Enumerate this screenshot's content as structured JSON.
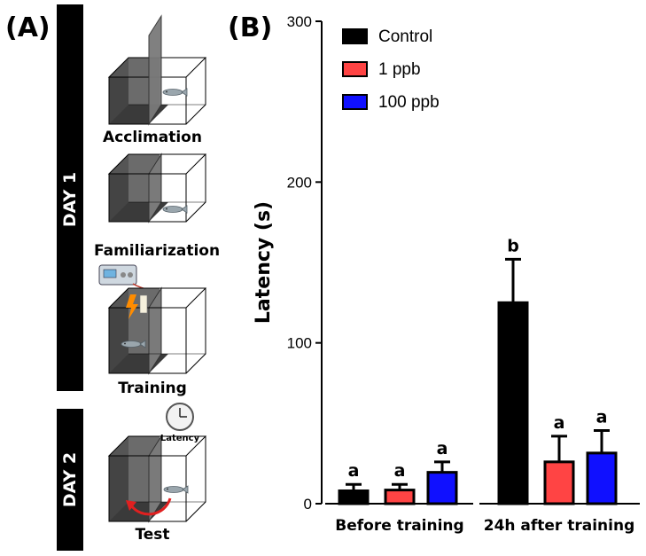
{
  "panel_a": {
    "label": "(A)",
    "day1_label": "DAY 1",
    "day2_label": "DAY 2",
    "steps": [
      "Acclimation",
      "Familiarization",
      "Training",
      "Test"
    ],
    "clock_label": "Latency"
  },
  "panel_b": {
    "label": "(B)"
  },
  "chart_data": {
    "type": "bar",
    "ylabel": "Latency (s)",
    "ylim": [
      0,
      300
    ],
    "yticks": [
      "0",
      "100",
      "200",
      "300"
    ],
    "categories": [
      "Before training",
      "24h after training"
    ],
    "series": [
      {
        "name": "Control",
        "color": "#000000",
        "values": [
          8,
          125
        ],
        "errors": [
          4,
          27
        ],
        "sig": [
          "a",
          "b"
        ]
      },
      {
        "name": "1 ppb",
        "color": "#ff4444",
        "values": [
          8.5,
          26
        ],
        "errors": [
          3.5,
          16
        ],
        "sig": [
          "a",
          "a"
        ]
      },
      {
        "name": "100 ppb",
        "color": "#1010ff",
        "values": [
          19.5,
          31.5
        ],
        "errors": [
          6.5,
          14
        ],
        "sig": [
          "a",
          "a"
        ]
      }
    ],
    "legend_position": "top-left",
    "grid": false
  }
}
